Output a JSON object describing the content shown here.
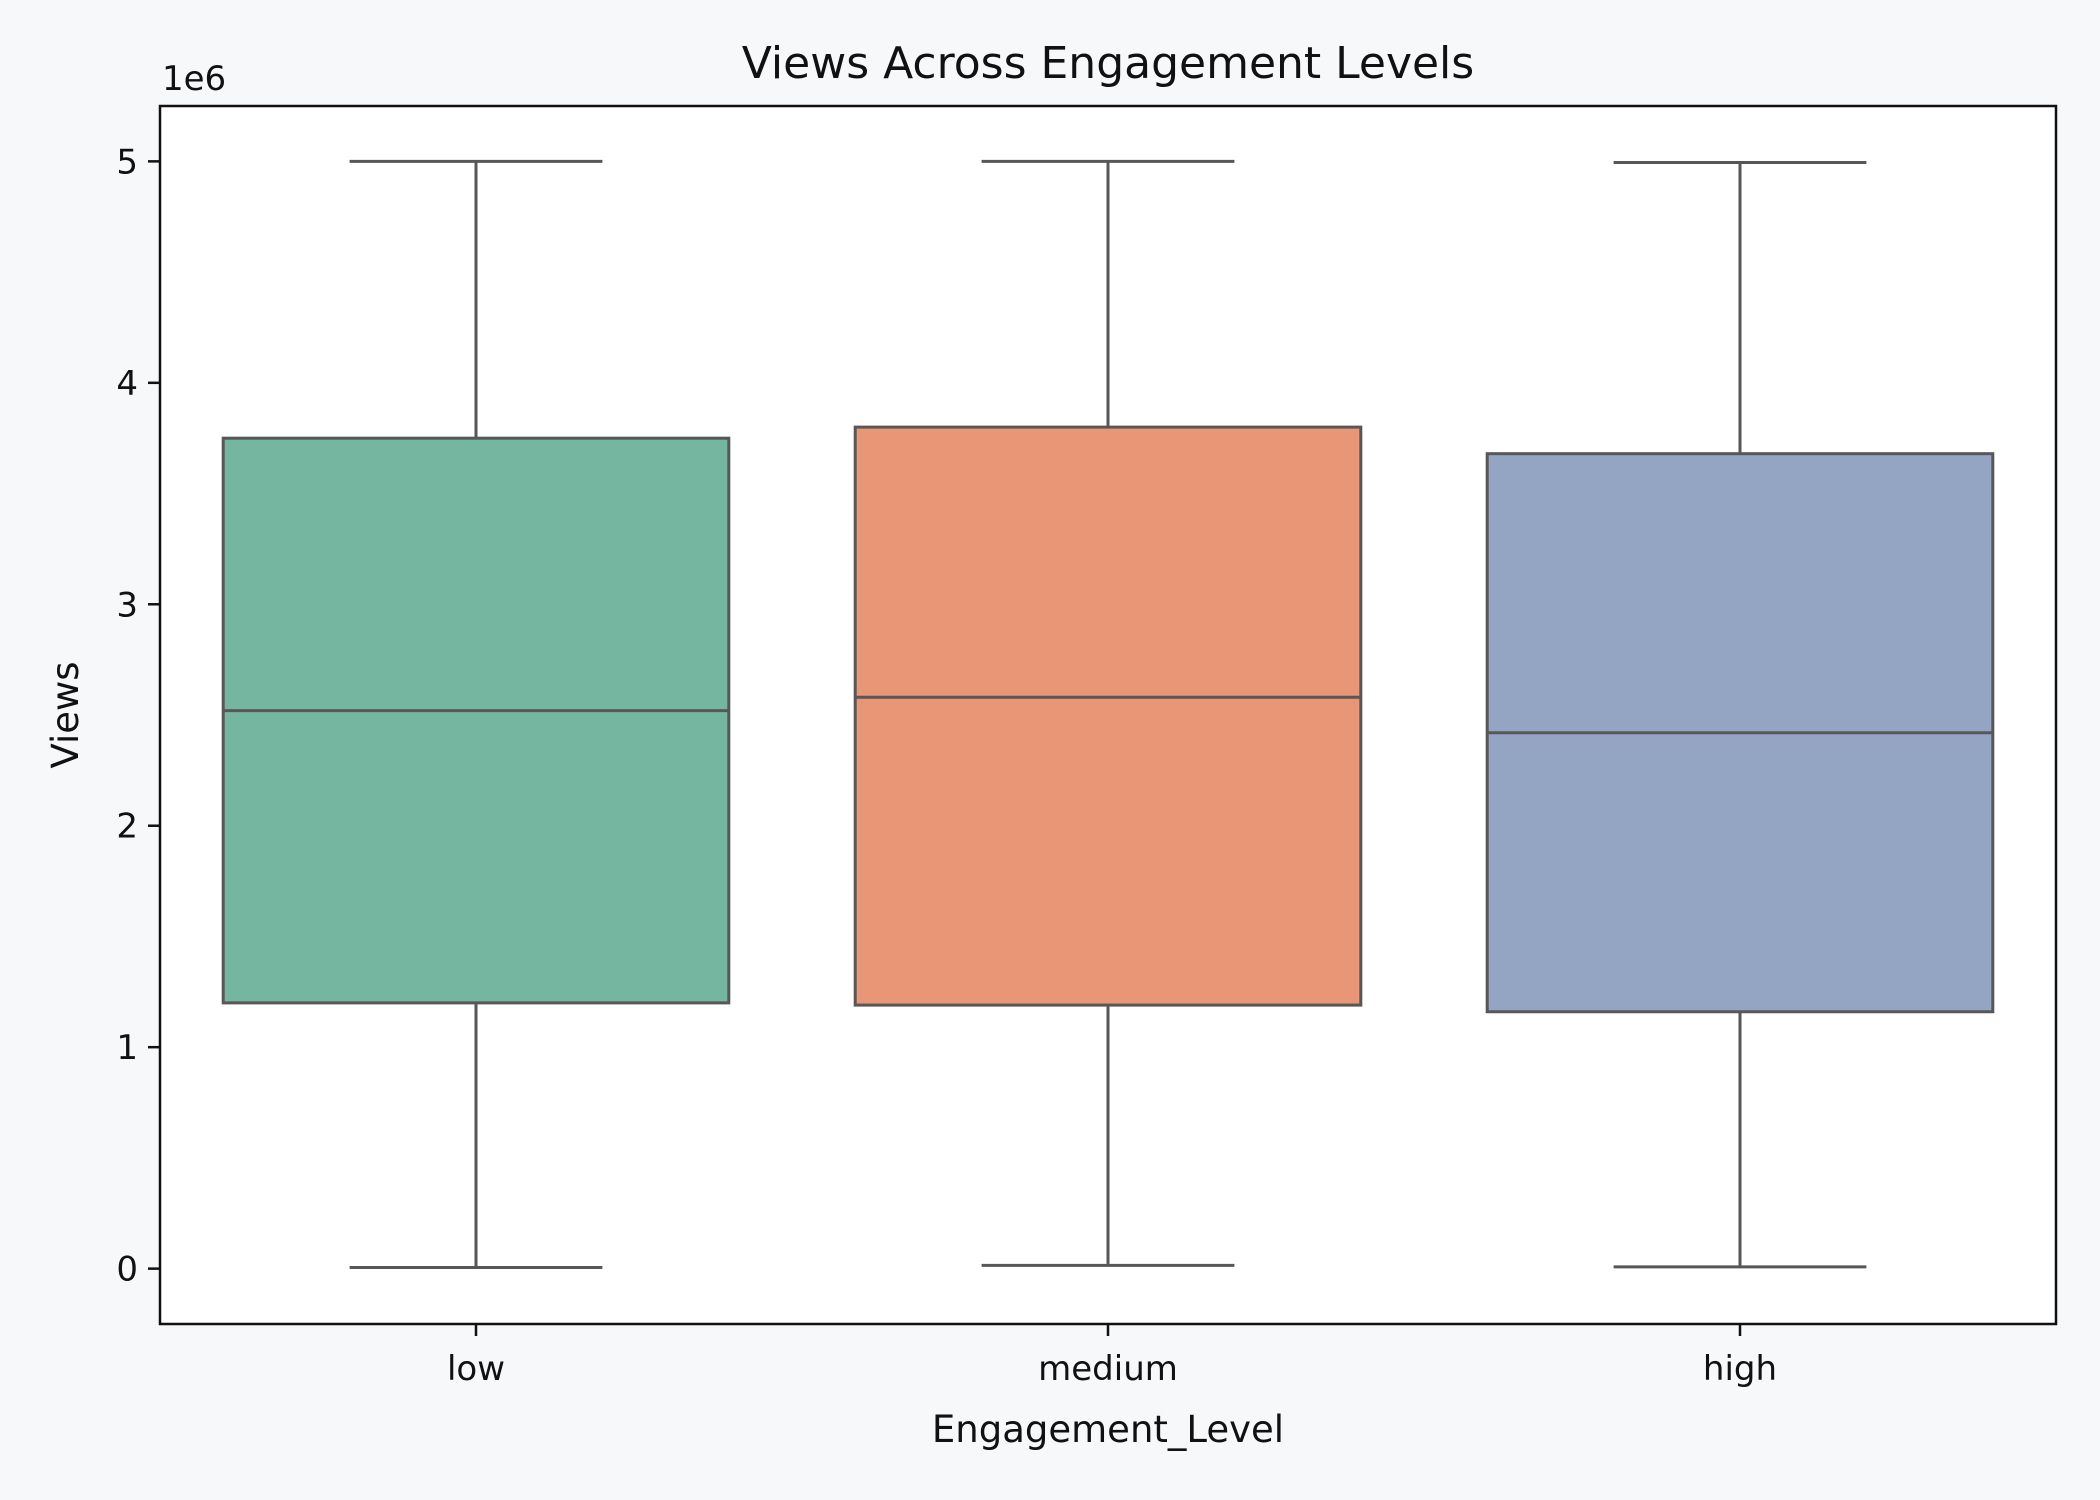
{
  "chart_data": {
    "type": "box",
    "title": "Views Across Engagement Levels",
    "xlabel": "Engagement_Level",
    "ylabel": "Views",
    "y_offset_label": "1e6",
    "ylim": [
      -250000,
      5250000
    ],
    "yticks": [
      0,
      1,
      2,
      3,
      4,
      5
    ],
    "grid": false,
    "categories": [
      "low",
      "medium",
      "high"
    ],
    "boxes": [
      {
        "category": "low",
        "color": "#75b6a1",
        "whisker_low": 5000,
        "q1": 1200000,
        "median": 2520000,
        "q3": 3750000,
        "whisker_high": 5000000
      },
      {
        "category": "medium",
        "color": "#e89675",
        "whisker_low": 15000,
        "q1": 1190000,
        "median": 2580000,
        "q3": 3800000,
        "whisker_high": 5000000
      },
      {
        "category": "high",
        "color": "#94a4c3",
        "whisker_low": 8000,
        "q1": 1160000,
        "median": 2420000,
        "q3": 3680000,
        "whisker_high": 4995000
      }
    ]
  },
  "colors": {
    "line": "#575757",
    "background": "#f7f8fa",
    "plot_background": "#ffffff"
  }
}
